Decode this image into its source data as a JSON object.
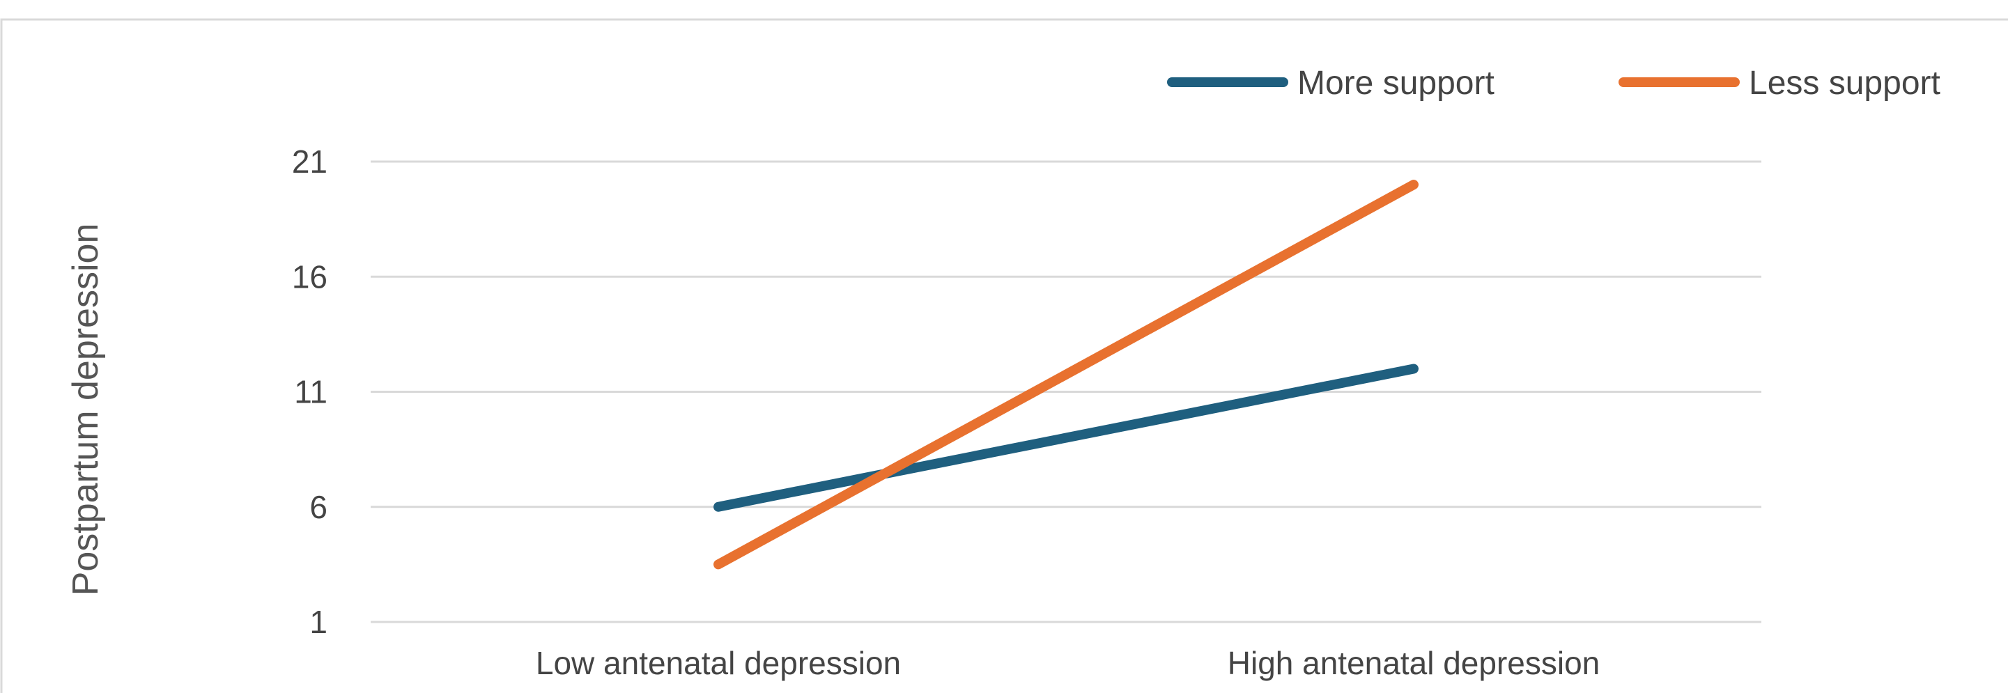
{
  "chart_data": {
    "type": "line",
    "categories": [
      "Low antenatal depression",
      "High antenatal depression"
    ],
    "series": [
      {
        "name": "More support",
        "values": [
          6,
          12
        ],
        "color": "#1f5f7f"
      },
      {
        "name": "Less support",
        "values": [
          3.5,
          20
        ],
        "color": "#e8712f"
      }
    ],
    "ylabel": "Postpartum depression",
    "xlabel": "",
    "y_ticks": [
      1,
      6,
      11,
      16,
      21
    ],
    "ylim": [
      1,
      21
    ],
    "grid": true,
    "legend_position": "top-right"
  }
}
